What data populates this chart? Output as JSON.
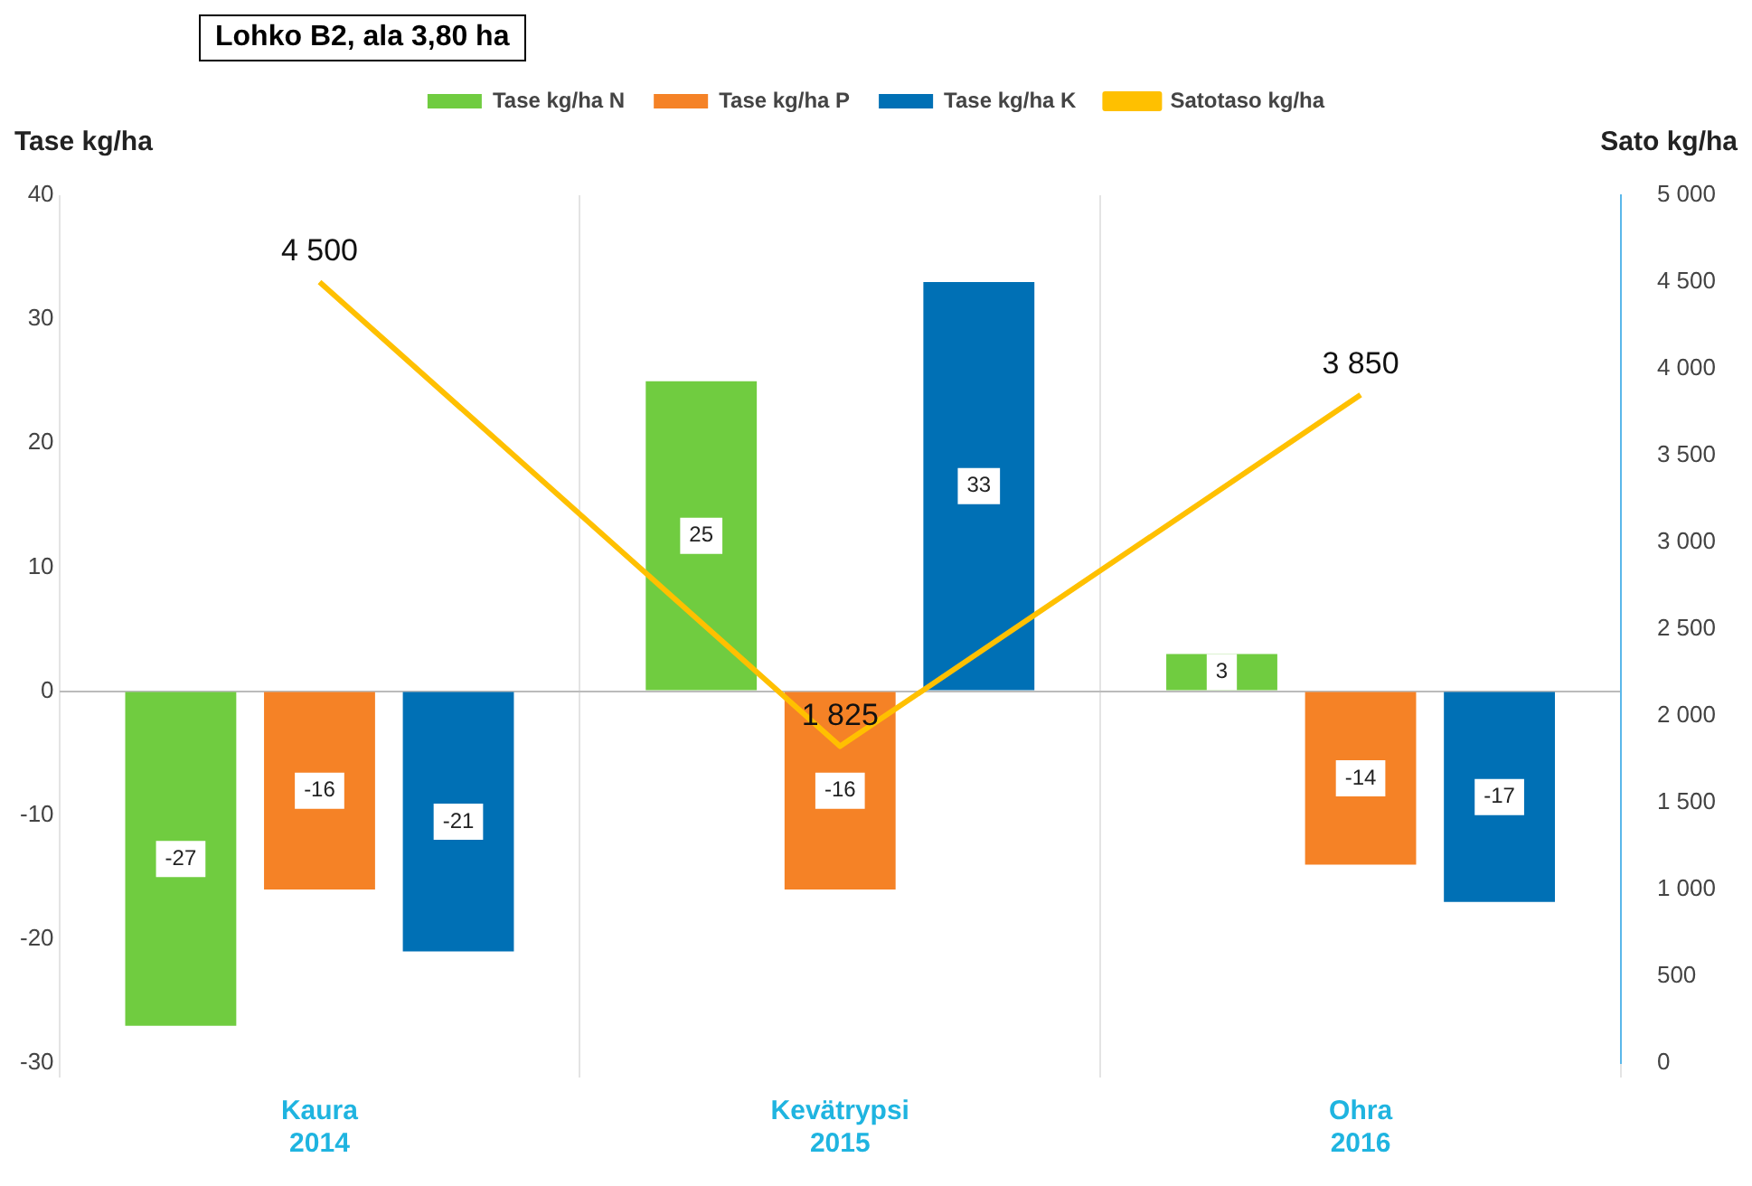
{
  "chart_data": {
    "type": "bar",
    "title": "Lohko B2, ala 3,80 ha",
    "ylabel": "Tase kg/ha",
    "y2label": "Sato kg/ha",
    "categories": [
      "Kaura\n2014",
      "Kevätrypsi\n2015",
      "Ohra\n2016"
    ],
    "series": [
      {
        "name": "Tase kg/ha N",
        "color": "#70cc40",
        "values": [
          -27,
          25,
          3
        ],
        "value_labels": [
          "-27",
          "25",
          "3"
        ]
      },
      {
        "name": "Tase kg/ha P",
        "color": "#f58226",
        "values": [
          -16,
          -16,
          -14
        ],
        "value_labels": [
          "-16",
          "-16",
          "-14"
        ]
      },
      {
        "name": "Tase kg/ha K",
        "color": "#0070b5",
        "values": [
          -21,
          33,
          -17
        ],
        "value_labels": [
          "-21",
          "33",
          "-17"
        ]
      },
      {
        "name": "Satotaso kg/ha",
        "type": "line",
        "axis": "y2",
        "color": "#ffc000",
        "values": [
          4500,
          1825,
          3850
        ],
        "value_labels": [
          "4 500",
          "1 825",
          "3 850"
        ]
      }
    ],
    "ylim": [
      -30,
      40
    ],
    "yticks": [
      -30,
      -20,
      -10,
      0,
      10,
      20,
      30,
      40
    ],
    "y2lim": [
      0,
      5000
    ],
    "y2ticks": [
      0,
      500,
      {
        "value": 1000,
        "label": "1 000"
      },
      {
        "value": 1500,
        "label": "1 500"
      },
      {
        "value": 2000,
        "label": "2 000"
      },
      {
        "value": 2500,
        "label": "2 500"
      },
      {
        "value": 3000,
        "label": "3 000"
      },
      {
        "value": 3500,
        "label": "3 500"
      },
      {
        "value": 4000,
        "label": "4 000"
      },
      {
        "value": 4500,
        "label": "4 500"
      },
      {
        "value": 5000,
        "label": "5 000"
      }
    ],
    "grid": "x",
    "legend": "top",
    "marker": "none",
    "line_style": "solid"
  }
}
